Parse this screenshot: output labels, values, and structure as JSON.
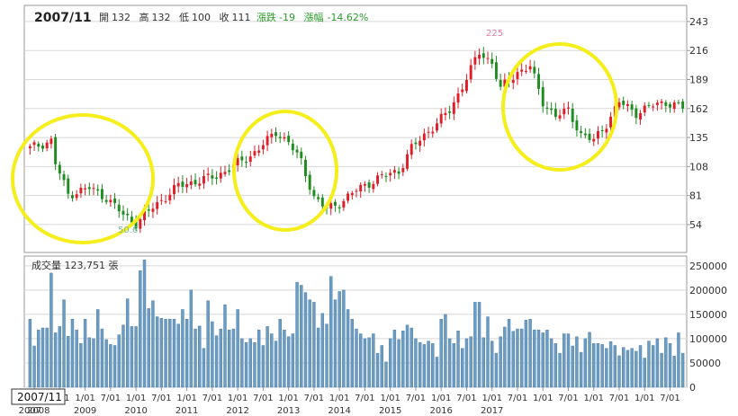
{
  "header": {
    "period": "2007/11",
    "open_label": "開",
    "open": "132",
    "high_label": "高",
    "high": "132",
    "low_label": "低",
    "low": "100",
    "close_label": "收",
    "close": "111",
    "change_label": "漲跌",
    "change": "-19",
    "pct_label": "漲幅",
    "pct": "-14.62%"
  },
  "volume_header": "成交量 123,751 張",
  "cursor_label": "2007/11",
  "colors": {
    "up": "#e11d27",
    "down": "#1f8c1f",
    "volume": "#6b9cc4",
    "circle": "#f5ee1a",
    "grid": "#d8d8d8",
    "max_label": "#e07aa0",
    "min_label": "#7cb8a0"
  },
  "chart_data": [
    {
      "type": "candlestick",
      "title": "",
      "y_ticks": [
        54,
        81,
        108,
        135,
        162,
        189,
        216,
        243
      ],
      "ylim": [
        28,
        258
      ],
      "annotations": {
        "max": "225",
        "min": "50.6"
      },
      "highlighted_regions": [
        "2007/11–2009/03",
        "2011/02–2011/12",
        "2014/09–2015/12"
      ],
      "anchors": [
        {
          "x": 0,
          "close": 125
        },
        {
          "x": 5,
          "close": 132
        },
        {
          "x": 6,
          "close": 111
        },
        {
          "x": 9,
          "close": 82
        },
        {
          "x": 14,
          "close": 88
        },
        {
          "x": 18,
          "close": 79
        },
        {
          "x": 22,
          "close": 63
        },
        {
          "x": 25,
          "close": 55
        },
        {
          "x": 29,
          "close": 70
        },
        {
          "x": 35,
          "close": 90
        },
        {
          "x": 44,
          "close": 99
        },
        {
          "x": 52,
          "close": 118
        },
        {
          "x": 56,
          "close": 132
        },
        {
          "x": 58,
          "close": 140
        },
        {
          "x": 61,
          "close": 131
        },
        {
          "x": 64,
          "close": 112
        },
        {
          "x": 67,
          "close": 80
        },
        {
          "x": 70,
          "close": 68
        },
        {
          "x": 73,
          "close": 74
        },
        {
          "x": 77,
          "close": 86
        },
        {
          "x": 82,
          "close": 97
        },
        {
          "x": 87,
          "close": 104
        },
        {
          "x": 90,
          "close": 125
        },
        {
          "x": 94,
          "close": 141
        },
        {
          "x": 99,
          "close": 160
        },
        {
          "x": 102,
          "close": 183
        },
        {
          "x": 106,
          "close": 214
        },
        {
          "x": 109,
          "close": 205
        },
        {
          "x": 111,
          "close": 180
        },
        {
          "x": 115,
          "close": 196
        },
        {
          "x": 118,
          "close": 201
        },
        {
          "x": 121,
          "close": 168
        },
        {
          "x": 124,
          "close": 155
        },
        {
          "x": 127,
          "close": 160
        },
        {
          "x": 130,
          "close": 138
        },
        {
          "x": 133,
          "close": 132
        },
        {
          "x": 136,
          "close": 148
        },
        {
          "x": 139,
          "close": 168
        },
        {
          "x": 143,
          "close": 158
        },
        {
          "x": 147,
          "close": 165
        },
        {
          "x": 150,
          "close": 168
        },
        {
          "x": 153,
          "close": 164
        },
        {
          "x": 156,
          "close": 160
        }
      ]
    },
    {
      "type": "bar",
      "title": "",
      "y_ticks": [
        0,
        50000,
        100000,
        150000,
        200000,
        250000
      ],
      "y_tick_labels": [
        "0",
        "50000",
        "100000",
        "150000",
        "200000",
        "250000"
      ],
      "ylim": [
        0,
        270000
      ],
      "values": [
        140000,
        85000,
        118000,
        122000,
        122000,
        235000,
        112000,
        125000,
        180000,
        105000,
        140000,
        118000,
        90000,
        140000,
        102000,
        100000,
        160000,
        120000,
        98000,
        88000,
        86000,
        108000,
        128000,
        182000,
        125000,
        125000,
        240000,
        262000,
        162000,
        178000,
        145000,
        142000,
        140000,
        140000,
        140000,
        130000,
        160000,
        140000,
        200000,
        120000,
        126000,
        80000,
        178000,
        135000,
        106000,
        120000,
        170000,
        118000,
        120000,
        160000,
        100000,
        92000,
        100000,
        92000,
        118000,
        86000,
        125000,
        110000,
        95000,
        140000,
        118000,
        104000,
        110000,
        216000,
        210000,
        195000,
        180000,
        175000,
        122000,
        152000,
        130000,
        228000,
        180000,
        197000,
        200000,
        160000,
        140000,
        120000,
        110000,
        100000,
        102000,
        110000,
        70000,
        86000,
        52000,
        100000,
        118000,
        98000,
        116000,
        128000,
        122000,
        100000,
        92000,
        88000,
        95000,
        90000,
        62000,
        140000,
        150000,
        100000,
        90000,
        116000,
        80000,
        100000,
        104000,
        175000,
        175000,
        102000,
        145000,
        95000,
        70000,
        104000,
        124000,
        140000,
        115000,
        120000,
        120000,
        138000,
        140000,
        118000,
        118000,
        112000,
        118000,
        100000,
        90000,
        70000,
        110000,
        110000,
        85000,
        104000,
        72000,
        100000,
        113000,
        90000,
        90000,
        88000,
        80000,
        94000,
        86000,
        65000,
        82000,
        76000,
        80000,
        74000,
        86000,
        60000,
        95000,
        86000,
        100000,
        70000,
        102000,
        90000,
        64000,
        112000,
        70000
      ]
    },
    {
      "type": "x-axis",
      "tick_labels": [
        {
          "label": "1/01",
          "index": 1
        },
        {
          "label": "7/01",
          "index": 7
        },
        {
          "label": "1/01",
          "index": 13
        },
        {
          "label": "7/01",
          "index": 19
        },
        {
          "label": "1/01",
          "index": 25
        },
        {
          "label": "7/01",
          "index": 31
        },
        {
          "label": "1/01",
          "index": 37
        },
        {
          "label": "7/01",
          "index": 43
        },
        {
          "label": "1/01",
          "index": 49
        },
        {
          "label": "7/01",
          "index": 55
        },
        {
          "label": "1/01",
          "index": 61
        },
        {
          "label": "7/01",
          "index": 67
        },
        {
          "label": "1/01",
          "index": 73
        },
        {
          "label": "7/01",
          "index": 79
        },
        {
          "label": "1/01",
          "index": 85
        },
        {
          "label": "7/01",
          "index": 91
        },
        {
          "label": "1/01",
          "index": 97
        },
        {
          "label": "7/01",
          "index": 103
        },
        {
          "label": "1/01",
          "index": 109
        },
        {
          "label": "7/01",
          "index": 115
        },
        {
          "label": "1/01",
          "index": 121
        },
        {
          "label": "7/01",
          "index": 127
        },
        {
          "label": "1/01",
          "index": 133
        },
        {
          "label": "7/01",
          "index": 139
        },
        {
          "label": "1/01",
          "index": 145
        },
        {
          "label": "7/01",
          "index": 151
        }
      ],
      "year_labels": [
        {
          "label": "2007",
          "index": 0
        },
        {
          "label": "2008",
          "index": 2
        },
        {
          "label": "2009",
          "index": 13
        },
        {
          "label": "2010",
          "index": 25
        },
        {
          "label": "2011",
          "index": 37
        },
        {
          "label": "2012",
          "index": 49
        },
        {
          "label": "2013",
          "index": 61
        },
        {
          "label": "2014",
          "index": 73
        },
        {
          "label": "2015",
          "index": 85
        },
        {
          "label": "2016",
          "index": 97
        },
        {
          "label": "2017",
          "index": 109
        }
      ]
    }
  ]
}
